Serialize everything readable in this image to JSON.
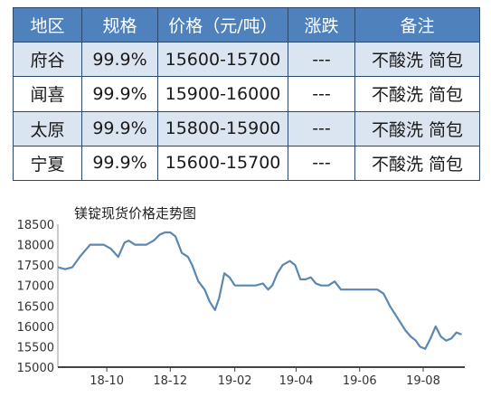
{
  "table": {
    "headers": [
      "地区",
      "规格",
      "价格（元/吨）",
      "涨跌",
      "备注"
    ],
    "rows": [
      [
        "府谷",
        "99.9%",
        "15600-15700",
        "---",
        "不酸洗 简包"
      ],
      [
        "闻喜",
        "99.9%",
        "15900-16000",
        "---",
        "不酸洗 简包"
      ],
      [
        "太原",
        "99.9%",
        "15800-15900",
        "---",
        "不酸洗 简包"
      ],
      [
        "宁夏",
        "99.9%",
        "15600-15700",
        "---",
        "不酸洗 简包"
      ]
    ]
  },
  "colors": {
    "header_bg": "#4f81bd",
    "shaded_row": "#dbe5f1",
    "line": "#5b87b0",
    "border": "#2b4a6f"
  },
  "chart_data": {
    "type": "line",
    "title": "镁锭现货价格走势图",
    "xlabel": "",
    "ylabel": "",
    "ylim": [
      15000,
      18500
    ],
    "yticks": [
      15000,
      15500,
      16000,
      16500,
      17000,
      17500,
      18000,
      18500
    ],
    "x_tick_labels": [
      "18-10",
      "18-12",
      "19-02",
      "19-04",
      "19-06",
      "19-08"
    ],
    "x_tick_dates": [
      "2018-10-01",
      "2018-12-01",
      "2019-02-01",
      "2019-04-01",
      "2019-06-01",
      "2019-08-01"
    ],
    "x_range": [
      "2018-08-15",
      "2019-09-10"
    ],
    "grid": false,
    "x": [
      "2018-08-15",
      "2018-08-22",
      "2018-08-29",
      "2018-09-05",
      "2018-09-10",
      "2018-09-15",
      "2018-09-20",
      "2018-09-28",
      "2018-10-05",
      "2018-10-12",
      "2018-10-18",
      "2018-10-22",
      "2018-10-28",
      "2018-11-03",
      "2018-11-08",
      "2018-11-15",
      "2018-11-21",
      "2018-11-26",
      "2018-12-01",
      "2018-12-06",
      "2018-12-12",
      "2018-12-18",
      "2018-12-22",
      "2018-12-28",
      "2019-01-03",
      "2019-01-08",
      "2019-01-13",
      "2019-01-17",
      "2019-01-22",
      "2019-01-27",
      "2019-02-01",
      "2019-02-06",
      "2019-02-14",
      "2019-02-21",
      "2019-02-28",
      "2019-03-05",
      "2019-03-09",
      "2019-03-14",
      "2019-03-19",
      "2019-03-26",
      "2019-03-31",
      "2019-04-05",
      "2019-04-10",
      "2019-04-15",
      "2019-04-20",
      "2019-04-25",
      "2019-05-02",
      "2019-05-08",
      "2019-05-14",
      "2019-05-21",
      "2019-05-28",
      "2019-06-05",
      "2019-06-12",
      "2019-06-18",
      "2019-06-24",
      "2019-06-30",
      "2019-07-05",
      "2019-07-10",
      "2019-07-15",
      "2019-07-20",
      "2019-07-25",
      "2019-07-29",
      "2019-08-03",
      "2019-08-08",
      "2019-08-13",
      "2019-08-18",
      "2019-08-23",
      "2019-08-28",
      "2019-09-02",
      "2019-09-07"
    ],
    "series": [
      {
        "values": [
          17450,
          17400,
          17450,
          17700,
          17850,
          18000,
          18000,
          18000,
          17900,
          17700,
          18050,
          18100,
          18000,
          18000,
          18000,
          18100,
          18250,
          18300,
          18300,
          18200,
          17800,
          17700,
          17500,
          17100,
          16900,
          16600,
          16400,
          16700,
          17300,
          17200,
          17000,
          17000,
          17000,
          17000,
          17050,
          16900,
          17000,
          17300,
          17500,
          17600,
          17500,
          17150,
          17150,
          17200,
          17050,
          17000,
          17000,
          17100,
          16900,
          16900,
          16900,
          16900,
          16900,
          16900,
          16800,
          16500,
          16300,
          16100,
          15900,
          15750,
          15650,
          15500,
          15450,
          15700,
          16000,
          15750,
          15650,
          15700,
          15850,
          15800
        ]
      }
    ]
  }
}
